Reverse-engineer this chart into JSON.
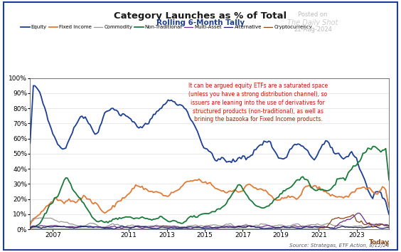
{
  "title": "Category Launches as % of Total",
  "subtitle": "Rolling 6-Month Tally",
  "source": "Source: Strategas, ETF Action, 8/12/24",
  "annotation": "It can be argued equity ETFs are a saturated space\n(unless you have a strong distribution channel), so\nissuers are leaning into the use of derivatives for\nstructured products (non-traditional), as well as\nbrining the bazooka for Fixed Income products.",
  "posted_on": "Posted on",
  "posted_date": "21-Aug-2024",
  "watermark": "The Daily Shot",
  "x_label_end": "Today",
  "series": {
    "Equity": {
      "color": "#1c3f94",
      "linewidth": 1.3
    },
    "Fixed Income": {
      "color": "#e07b39",
      "linewidth": 1.3
    },
    "Commodity": {
      "color": "#999999",
      "linewidth": 0.9
    },
    "Non-Traditional": {
      "color": "#1a7a3c",
      "linewidth": 1.3
    },
    "Multi-Asset": {
      "color": "#6b2d8b",
      "linewidth": 0.9
    },
    "Alternative": {
      "color": "#1a1a6e",
      "linewidth": 0.9
    },
    "Cryptocurrency": {
      "color": "#8b4513",
      "linewidth": 0.9
    }
  },
  "ylim": [
    0,
    100
  ],
  "yticks": [
    0,
    10,
    20,
    30,
    40,
    50,
    60,
    70,
    80,
    90,
    100
  ],
  "xtick_years": [
    2007,
    2011,
    2013,
    2015,
    2017,
    2019,
    2021,
    2023
  ],
  "background_color": "#ffffff",
  "plot_bg": "#ffffff",
  "border_color": "#1c3f94"
}
